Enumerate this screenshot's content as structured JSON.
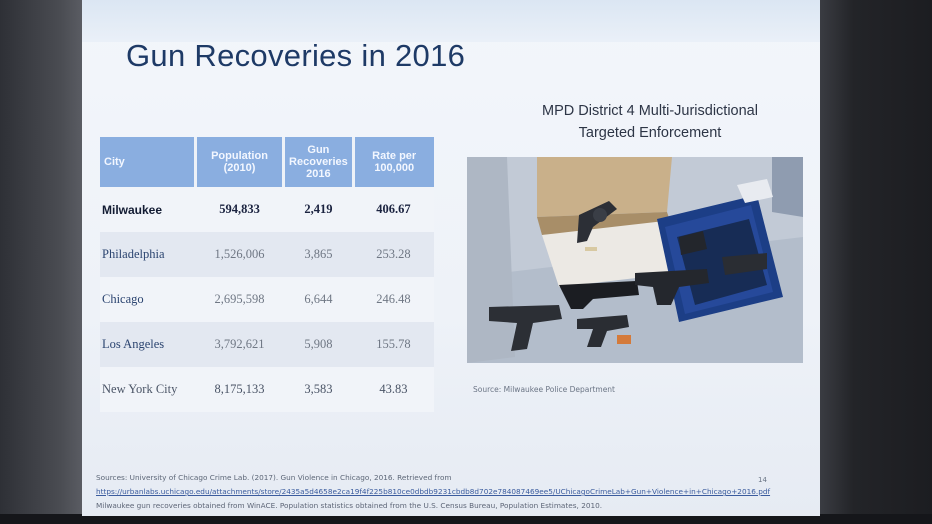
{
  "slide": {
    "title": "Gun Recoveries in 2016",
    "table": {
      "headers": [
        "City",
        "Population (2010)",
        "Gun Recoveries 2016",
        "Rate per 100,000"
      ],
      "rows": [
        {
          "city": "Milwaukee",
          "population": "594,833",
          "recoveries": "2,419",
          "rate": "406.67"
        },
        {
          "city": "Philadelphia",
          "population": "1,526,006",
          "recoveries": "3,865",
          "rate": "253.28"
        },
        {
          "city": "Chicago",
          "population": "2,695,598",
          "recoveries": "6,644",
          "rate": "246.48"
        },
        {
          "city": "Los Angeles",
          "population": "3,792,621",
          "recoveries": "5,908",
          "rate": "155.78"
        },
        {
          "city": "New York City",
          "population": "8,175,133",
          "recoveries": "3,583",
          "rate": "43.83"
        }
      ]
    },
    "photo_caption": {
      "line1": "MPD District 4 Multi-Jurisdictional",
      "line2": "Targeted Enforcement"
    },
    "photo_source": "Source: Milwaukee Police Department",
    "footer": {
      "line1": "Sources: University of Chicago Crime Lab. (2017). Gun Violence in Chicago, 2016. Retrieved from",
      "link": "https://urbanlabs.uchicago.edu/attachments/store/2435a5d4658e2ca19f4f225b810ce0dbdb9231cbdb8d702e784087469ee5/UChicagoCrimeLab+Gun+Violence+in+Chicago+2016.pdf",
      "line3": "Milwaukee gun recoveries obtained from WinACE. Population statistics obtained from the U.S. Census Bureau, Population Estimates, 2010."
    },
    "page_number": "14"
  },
  "colors": {
    "title": "#1e3a66",
    "table_header": "#8aaee0",
    "slide_bg": "#eef2f8"
  }
}
